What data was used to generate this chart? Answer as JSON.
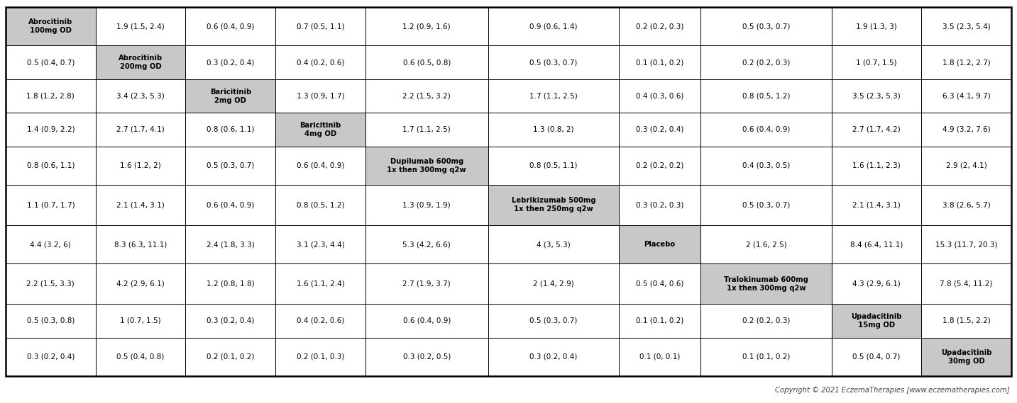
{
  "nrows": 10,
  "ncols": 10,
  "cells": [
    [
      "Abrocitinib\n100mg OD",
      "1.9 (1.5, 2.4)",
      "0.6 (0.4, 0.9)",
      "0.7 (0.5, 1.1)",
      "1.2 (0.9, 1.6)",
      "0.9 (0.6, 1.4)",
      "0.2 (0.2, 0.3)",
      "0.5 (0.3, 0.7)",
      "1.9 (1.3, 3)",
      "3.5 (2.3, 5.4)"
    ],
    [
      "0.5 (0.4, 0.7)",
      "Abrocitinib\n200mg OD",
      "0.3 (0.2, 0.4)",
      "0.4 (0.2, 0.6)",
      "0.6 (0.5, 0.8)",
      "0.5 (0.3, 0.7)",
      "0.1 (0.1, 0.2)",
      "0.2 (0.2, 0.3)",
      "1 (0.7, 1.5)",
      "1.8 (1.2, 2.7)"
    ],
    [
      "1.8 (1.2, 2.8)",
      "3.4 (2.3, 5.3)",
      "Baricitinib\n2mg OD",
      "1.3 (0.9, 1.7)",
      "2.2 (1.5, 3.2)",
      "1.7 (1.1, 2.5)",
      "0.4 (0.3, 0.6)",
      "0.8 (0.5, 1.2)",
      "3.5 (2.3, 5.3)",
      "6.3 (4.1, 9.7)"
    ],
    [
      "1.4 (0.9, 2.2)",
      "2.7 (1.7, 4.1)",
      "0.8 (0.6, 1.1)",
      "Baricitinib\n4mg OD",
      "1.7 (1.1, 2.5)",
      "1.3 (0.8, 2)",
      "0.3 (0.2, 0.4)",
      "0.6 (0.4, 0.9)",
      "2.7 (1.7, 4.2)",
      "4.9 (3.2, 7.6)"
    ],
    [
      "0.8 (0.6, 1.1)",
      "1.6 (1.2, 2)",
      "0.5 (0.3, 0.7)",
      "0.6 (0.4, 0.9)",
      "Dupilumab 600mg\n1x then 300mg q2w",
      "0.8 (0.5, 1.1)",
      "0.2 (0.2, 0.2)",
      "0.4 (0.3, 0.5)",
      "1.6 (1.1, 2.3)",
      "2.9 (2, 4.1)"
    ],
    [
      "1.1 (0.7, 1.7)",
      "2.1 (1.4, 3.1)",
      "0.6 (0.4, 0.9)",
      "0.8 (0.5, 1.2)",
      "1.3 (0.9, 1.9)",
      "Lebrikizumab 500mg\n1x then 250mg q2w",
      "0.3 (0.2, 0.3)",
      "0.5 (0.3, 0.7)",
      "2.1 (1.4, 3.1)",
      "3.8 (2.6, 5.7)"
    ],
    [
      "4.4 (3.2, 6)",
      "8.3 (6.3, 11.1)",
      "2.4 (1.8, 3.3)",
      "3.1 (2.3, 4.4)",
      "5.3 (4.2, 6.6)",
      "4 (3, 5.3)",
      "Placebo",
      "2 (1.6, 2.5)",
      "8.4 (6.4, 11.1)",
      "15.3 (11.7, 20.3)"
    ],
    [
      "2.2 (1.5, 3.3)",
      "4.2 (2.9, 6.1)",
      "1.2 (0.8, 1.8)",
      "1.6 (1.1, 2.4)",
      "2.7 (1.9, 3.7)",
      "2 (1.4, 2.9)",
      "0.5 (0.4, 0.6)",
      "Tralokinumab 600mg\n1x then 300mg q2w",
      "4.3 (2.9, 6.1)",
      "7.8 (5.4, 11.2)"
    ],
    [
      "0.5 (0.3, 0.8)",
      "1 (0.7, 1.5)",
      "0.3 (0.2, 0.4)",
      "0.4 (0.2, 0.6)",
      "0.6 (0.4, 0.9)",
      "0.5 (0.3, 0.7)",
      "0.1 (0.1, 0.2)",
      "0.2 (0.2, 0.3)",
      "Upadacitinib\n15mg OD",
      "1.8 (1.5, 2.2)"
    ],
    [
      "0.3 (0.2, 0.4)",
      "0.5 (0.4, 0.8)",
      "0.2 (0.1, 0.2)",
      "0.2 (0.1, 0.3)",
      "0.3 (0.2, 0.5)",
      "0.3 (0.2, 0.4)",
      "0.1 (0, 0.1)",
      "0.1 (0.1, 0.2)",
      "0.5 (0.4, 0.7)",
      "Upadacitinib\n30mg OD"
    ]
  ],
  "diagonal_color": "#c8c8c8",
  "cell_bg_white": "#ffffff",
  "border_color": "#000000",
  "text_color": "#000000",
  "copyright_text": "Copyright © 2021 EczemaTherapies [www.eczematherapies.com]",
  "col_widths_rel": [
    1.1,
    1.1,
    1.1,
    1.1,
    1.5,
    1.6,
    1.0,
    1.6,
    1.1,
    1.1
  ],
  "row_heights_rel": [
    1.15,
    1.0,
    1.0,
    1.0,
    1.15,
    1.2,
    1.15,
    1.2,
    1.0,
    1.15
  ],
  "diag_fontsize": 7.2,
  "cell_fontsize": 7.5,
  "fig_width": 14.33,
  "fig_height": 5.69,
  "dpi": 100
}
